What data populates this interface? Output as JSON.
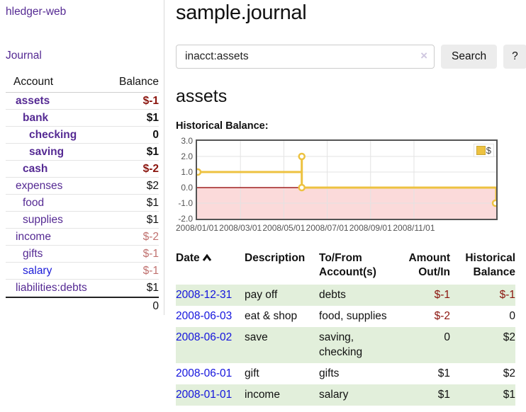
{
  "app": {
    "title": "hledger-web"
  },
  "sidebar": {
    "journal_link": "Journal",
    "accounts": {
      "account_header": "Account",
      "balance_header": "Balance",
      "rows": [
        {
          "name": "assets",
          "balance": "$-1",
          "indent": 1,
          "bold": true,
          "balance_style": "neg",
          "link_color": "purple"
        },
        {
          "name": "bank",
          "balance": "$1",
          "indent": 2,
          "bold": true,
          "balance_style": "",
          "link_color": "purple"
        },
        {
          "name": "checking",
          "balance": "0",
          "indent": 3,
          "bold": true,
          "balance_style": "",
          "link_color": "purple"
        },
        {
          "name": "saving",
          "balance": "$1",
          "indent": 3,
          "bold": true,
          "balance_style": "",
          "link_color": "purple"
        },
        {
          "name": "cash",
          "balance": "$-2",
          "indent": 2,
          "bold": true,
          "balance_style": "neg",
          "link_color": "purple"
        },
        {
          "name": "expenses",
          "balance": "$2",
          "indent": 1,
          "bold": false,
          "balance_style": "",
          "link_color": "purple"
        },
        {
          "name": "food",
          "balance": "$1",
          "indent": 2,
          "bold": false,
          "balance_style": "",
          "link_color": "purple"
        },
        {
          "name": "supplies",
          "balance": "$1",
          "indent": 2,
          "bold": false,
          "balance_style": "",
          "link_color": "purple"
        },
        {
          "name": "income",
          "balance": "$-2",
          "indent": 1,
          "bold": false,
          "balance_style": "neg-dim",
          "link_color": "purple"
        },
        {
          "name": "gifts",
          "balance": "$-1",
          "indent": 2,
          "bold": false,
          "balance_style": "neg-dim",
          "link_color": "purple"
        },
        {
          "name": "salary",
          "balance": "$-1",
          "indent": 2,
          "bold": false,
          "balance_style": "neg-dim",
          "link_color": "blue"
        },
        {
          "name": "liabilities:debts",
          "balance": "$1",
          "indent": 1,
          "bold": false,
          "balance_style": "",
          "link_color": "purple"
        }
      ],
      "total": "0"
    }
  },
  "main": {
    "title": "sample.journal",
    "search": {
      "value": "inacct:assets",
      "clear_icon": "×",
      "button_label": "Search",
      "help_label": "?"
    },
    "account_heading": "assets",
    "chart_label": "Historical Balance:"
  },
  "chart_data": {
    "type": "line",
    "title": "Historical Balance",
    "ylim": [
      -2,
      3
    ],
    "yticks": [
      {
        "label": "3.0",
        "value": 3
      },
      {
        "label": "2.0",
        "value": 2
      },
      {
        "label": "1.0",
        "value": 1
      },
      {
        "label": "0.0",
        "value": 0
      },
      {
        "label": "-1.0",
        "value": -1
      },
      {
        "label": "-2.0",
        "value": -2
      }
    ],
    "xticks": [
      {
        "label": "2008/01/01",
        "f": 0
      },
      {
        "label": "2008/03/01",
        "f": 0.145
      },
      {
        "label": "2008/05/01",
        "f": 0.29
      },
      {
        "label": "2008/07/01",
        "f": 0.435
      },
      {
        "label": "2008/09/01",
        "f": 0.58
      },
      {
        "label": "2008/11/01",
        "f": 0.725
      }
    ],
    "grid": true,
    "legend_position": "top-right",
    "series": [
      {
        "name": "$",
        "color": "#edc240",
        "step": true,
        "points": [
          {
            "date": "2008-01-01",
            "value": 1,
            "f": 0
          },
          {
            "date": "2008-06-01",
            "value": 2,
            "f": 0.35
          },
          {
            "date": "2008-06-03",
            "value": 0,
            "f": 0.35
          },
          {
            "date": "2008-12-31",
            "value": -1,
            "f": 1
          }
        ]
      }
    ],
    "negative_region_color": "#fbdada",
    "zero_line_color": "#a02020",
    "gridline_color": "#e3e3e3"
  },
  "transactions": {
    "headers": [
      {
        "label": "Date",
        "sorted": "ascending"
      },
      {
        "label": "Description"
      },
      {
        "label": "To/From Account(s)"
      },
      {
        "label": "Amount Out/In"
      },
      {
        "label": "Historical Balance"
      }
    ],
    "rows": [
      {
        "date": "2008-12-31",
        "description": "pay off",
        "accounts": "debts",
        "amount": "$-1",
        "amount_neg": true,
        "balance": "$-1",
        "balance_neg": true,
        "shaded": true
      },
      {
        "date": "2008-06-03",
        "description": "eat & shop",
        "accounts": "food, supplies",
        "amount": "$-2",
        "amount_neg": true,
        "balance": "0",
        "balance_neg": false,
        "shaded": false
      },
      {
        "date": "2008-06-02",
        "description": "save",
        "accounts": "saving, checking",
        "amount": "0",
        "amount_neg": false,
        "balance": "$2",
        "balance_neg": false,
        "shaded": true
      },
      {
        "date": "2008-06-01",
        "description": "gift",
        "accounts": "gifts",
        "amount": "$1",
        "amount_neg": false,
        "balance": "$2",
        "balance_neg": false,
        "shaded": false
      },
      {
        "date": "2008-01-01",
        "description": "income",
        "accounts": "salary",
        "amount": "$1",
        "amount_neg": false,
        "balance": "$1",
        "balance_neg": false,
        "shaded": true
      }
    ]
  },
  "colors": {
    "link_purple": "#552a93",
    "link_blue": "#1414dd",
    "negative_red": "#8b150e",
    "negative_faded": "#c0716f",
    "row_green": "#e2efdb",
    "series_gold": "#edc240"
  }
}
